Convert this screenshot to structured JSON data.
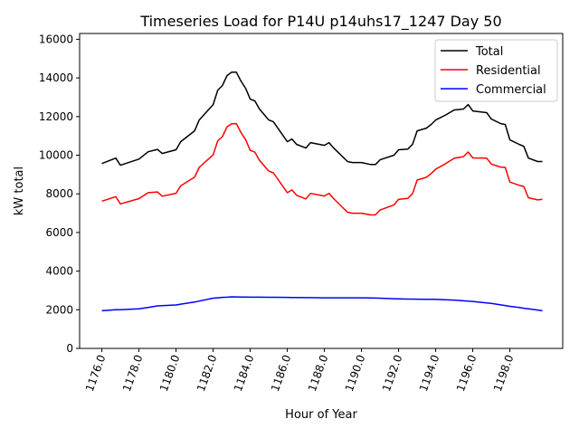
{
  "chart_data": {
    "type": "line",
    "title": "Timeseries Load for P14U p14uhs17_1247  Day 50",
    "xlabel": "Hour of Year",
    "ylabel": "kW total",
    "xlim": [
      1174.8,
      1200.85
    ],
    "ylim": [
      0,
      16300
    ],
    "xticks": [
      1176,
      1178,
      1180,
      1182,
      1184,
      1186,
      1188,
      1190,
      1192,
      1194,
      1196,
      1198
    ],
    "xtick_labels": [
      "1176.0",
      "1178.0",
      "1180.0",
      "1182.0",
      "1184.0",
      "1186.0",
      "1188.0",
      "1190.0",
      "1192.0",
      "1194.0",
      "1196.0",
      "1198.0"
    ],
    "yticks": [
      0,
      2000,
      4000,
      6000,
      8000,
      10000,
      12000,
      14000,
      16000
    ],
    "ytick_labels": [
      "0",
      "2000",
      "4000",
      "6000",
      "8000",
      "10000",
      "12000",
      "14000",
      "16000"
    ],
    "grid": false,
    "legend_position": "top-right",
    "x": [
      1176,
      1176.75,
      1177,
      1178,
      1178.5,
      1179,
      1179.25,
      1180,
      1180.25,
      1181,
      1181.25,
      1182,
      1182.25,
      1182.5,
      1182.75,
      1183,
      1183.25,
      1183.5,
      1183.75,
      1184,
      1184.25,
      1184.5,
      1185,
      1185.25,
      1186,
      1186.25,
      1186.5,
      1187,
      1187.25,
      1188,
      1188.25,
      1188.5,
      1189,
      1189.25,
      1189.5,
      1190,
      1190.5,
      1190.75,
      1191,
      1191.75,
      1192,
      1192.5,
      1192.75,
      1193,
      1193.5,
      1193.75,
      1194,
      1194.5,
      1195,
      1195.5,
      1195.75,
      1196,
      1196.75,
      1197,
      1197.5,
      1197.75,
      1198,
      1198.5,
      1198.75,
      1199,
      1199.5,
      1199.75
    ],
    "series": [
      {
        "name": "Total",
        "color": "#000000",
        "values": [
          9570,
          9850,
          9480,
          9800,
          10180,
          10300,
          10090,
          10280,
          10700,
          11260,
          11820,
          12620,
          13370,
          13600,
          14120,
          14300,
          14300,
          13840,
          13460,
          12900,
          12810,
          12390,
          11820,
          11730,
          10700,
          10840,
          10560,
          10370,
          10650,
          10510,
          10650,
          10370,
          9900,
          9670,
          9620,
          9620,
          9520,
          9520,
          9760,
          10000,
          10280,
          10320,
          10560,
          11260,
          11400,
          11590,
          11820,
          12060,
          12340,
          12390,
          12620,
          12290,
          12200,
          11870,
          11640,
          11590,
          10790,
          10560,
          10460,
          9850,
          9670,
          9670
        ]
      },
      {
        "name": "Residential",
        "color": "#ff0000",
        "values": [
          7620,
          7850,
          7480,
          7750,
          8060,
          8100,
          7880,
          8030,
          8410,
          8860,
          9370,
          10020,
          10750,
          10960,
          11470,
          11630,
          11635,
          11180,
          10805,
          10250,
          10160,
          9740,
          9175,
          9085,
          8060,
          8202,
          7925,
          7740,
          8022,
          7890,
          8030,
          7750,
          7280,
          7050,
          7000,
          7000,
          6910,
          6915,
          7160,
          7430,
          7720,
          7765,
          8008,
          8710,
          8855,
          9048,
          9280,
          9540,
          9840,
          9925,
          10170,
          9860,
          9845,
          9540,
          9385,
          9370,
          8610,
          8445,
          8380,
          7800,
          7685,
          7720
        ]
      },
      {
        "name": "Commercial",
        "color": "#0000ff",
        "values": [
          1950,
          2000,
          2000,
          2050,
          2120,
          2200,
          2210,
          2250,
          2290,
          2400,
          2450,
          2600,
          2620,
          2640,
          2650,
          2670,
          2665,
          2660,
          2655,
          2650,
          2650,
          2650,
          2645,
          2645,
          2640,
          2638,
          2635,
          2630,
          2628,
          2620,
          2620,
          2620,
          2620,
          2620,
          2620,
          2620,
          2610,
          2605,
          2600,
          2570,
          2560,
          2555,
          2552,
          2550,
          2545,
          2542,
          2540,
          2520,
          2500,
          2465,
          2450,
          2430,
          2355,
          2330,
          2255,
          2220,
          2180,
          2115,
          2080,
          2050,
          1985,
          1950
        ]
      }
    ]
  }
}
